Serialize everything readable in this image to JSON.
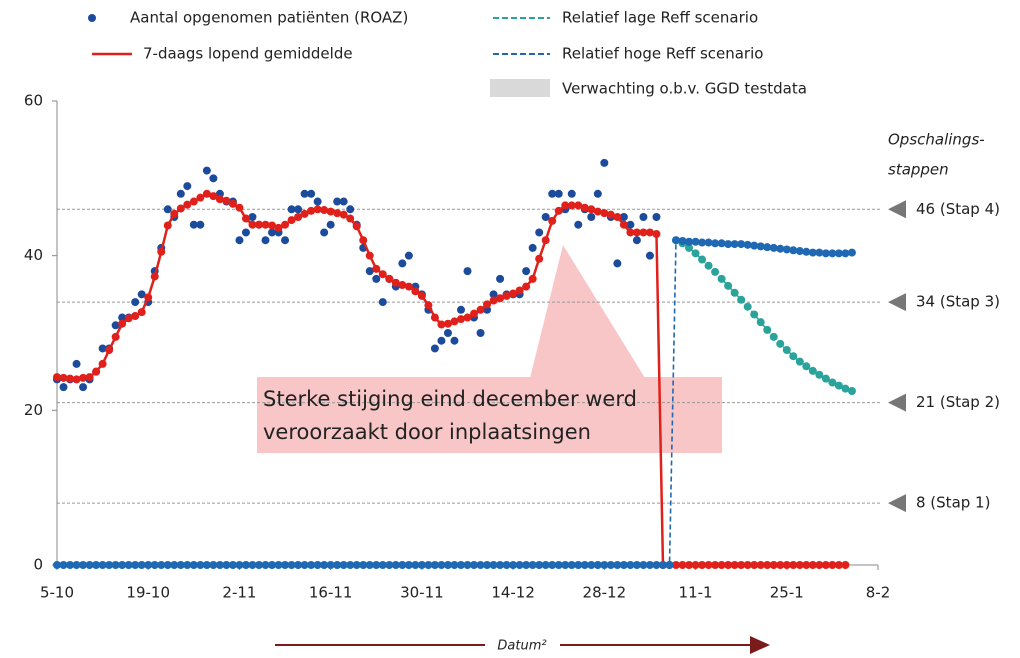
{
  "chart_data": {
    "type": "line",
    "x_label": "Datum²",
    "xlim": [
      0,
      126
    ],
    "xticks": [
      {
        "value": 0,
        "label": "5-10"
      },
      {
        "value": 14,
        "label": "19-10"
      },
      {
        "value": 28,
        "label": "2-11"
      },
      {
        "value": 42,
        "label": "16-11"
      },
      {
        "value": 56,
        "label": "30-11"
      },
      {
        "value": 70,
        "label": "14-12"
      },
      {
        "value": 84,
        "label": "28-12"
      },
      {
        "value": 98,
        "label": "11-1"
      },
      {
        "value": 112,
        "label": "25-1"
      },
      {
        "value": 126,
        "label": "8-2"
      }
    ],
    "ylim": [
      0,
      60
    ],
    "yticks": [
      0,
      20,
      40,
      60
    ],
    "x": [
      0,
      1,
      2,
      3,
      4,
      5,
      6,
      7,
      8,
      9,
      10,
      11,
      12,
      13,
      14,
      15,
      16,
      17,
      18,
      19,
      20,
      21,
      22,
      23,
      24,
      25,
      26,
      27,
      28,
      29,
      30,
      31,
      32,
      33,
      34,
      35,
      36,
      37,
      38,
      39,
      40,
      41,
      42,
      43,
      44,
      45,
      46,
      47,
      48,
      49,
      50,
      51,
      52,
      53,
      54,
      55,
      56,
      57,
      58,
      59,
      60,
      61,
      62,
      63,
      64,
      65,
      66,
      67,
      68,
      69,
      70,
      71,
      72,
      73,
      74,
      75,
      76,
      77,
      78,
      79,
      80,
      81,
      82,
      83,
      84,
      85,
      86,
      87,
      88,
      89,
      90,
      91,
      92,
      93,
      94,
      95,
      96,
      97,
      98,
      99,
      100,
      101,
      102,
      103,
      104,
      105,
      106,
      107,
      108,
      109,
      110,
      111,
      112,
      113,
      114,
      115,
      116,
      117,
      118,
      119,
      120,
      121,
      122
    ],
    "series": [
      {
        "name": "Aantal opgenomen patiënten (ROAZ)",
        "style": "markers",
        "color": "#1c4b9c",
        "values": [
          24,
          23,
          24,
          26,
          23,
          24,
          25,
          28,
          28,
          31,
          32,
          32,
          34,
          35,
          34,
          38,
          41,
          46,
          45,
          48,
          49,
          44,
          44,
          51,
          50,
          48,
          47,
          47,
          42,
          43,
          45,
          44,
          42,
          43,
          43,
          42,
          46,
          46,
          48,
          48,
          47,
          43,
          44,
          47,
          47,
          46,
          44,
          41,
          38,
          37,
          34,
          37,
          36,
          39,
          40,
          36,
          35,
          33,
          28,
          29,
          30,
          29,
          33,
          38,
          32,
          30,
          33,
          35,
          37,
          35,
          35,
          35,
          38,
          41,
          43,
          45,
          48,
          48,
          46,
          48,
          44,
          46,
          45,
          48,
          52,
          45,
          39,
          45,
          44,
          42,
          45,
          40,
          45,
          null,
          null,
          null,
          null,
          null,
          null,
          null,
          null,
          null,
          null,
          null,
          null,
          null,
          null,
          null,
          null,
          null,
          null,
          null,
          null,
          null,
          null,
          null,
          null,
          null,
          null,
          null,
          null,
          null,
          null
        ]
      },
      {
        "name": "7-daags lopend gemiddelde",
        "style": "line",
        "color": "#e0201b",
        "values": [
          24.3,
          24.2,
          24.1,
          24,
          24.2,
          24.3,
          25,
          26,
          27.8,
          29.5,
          31.2,
          31.9,
          32.2,
          32.7,
          34.6,
          37.3,
          40.5,
          43.9,
          45.4,
          46.1,
          46.6,
          47,
          47.5,
          48,
          47.7,
          47.3,
          47.1,
          46.7,
          46.2,
          44.8,
          44,
          44,
          44,
          43.9,
          43.6,
          44,
          44.6,
          45,
          45.4,
          45.8,
          46,
          45.9,
          45.7,
          45.5,
          45.3,
          44.8,
          43.8,
          42,
          40,
          38.3,
          37.6,
          37,
          36.5,
          36.2,
          36,
          35.4,
          34.8,
          33.6,
          32,
          31.1,
          31.2,
          31.5,
          31.8,
          32,
          32.5,
          33,
          33.7,
          34.2,
          34.5,
          34.8,
          35.1,
          35.5,
          36,
          37,
          39.6,
          42,
          44.5,
          45.8,
          46.5,
          46.5,
          46.5,
          46.2,
          46,
          45.7,
          45.5,
          45.3,
          45,
          44,
          43,
          43,
          43,
          43,
          42.8,
          0,
          0,
          0,
          0,
          0,
          0,
          0,
          0,
          0,
          0,
          0,
          0,
          0,
          0,
          0,
          0,
          0,
          0,
          0,
          0,
          0,
          0,
          0,
          0,
          0,
          0,
          0,
          0,
          0,
          null
        ]
      },
      {
        "name": "Relatief lage Reff scenario",
        "style": "dashed",
        "color": "#2aa39b",
        "values": [
          null,
          null,
          null,
          null,
          null,
          null,
          null,
          null,
          null,
          null,
          null,
          null,
          null,
          null,
          null,
          null,
          null,
          null,
          null,
          null,
          null,
          null,
          null,
          null,
          null,
          null,
          null,
          null,
          null,
          null,
          null,
          null,
          null,
          null,
          null,
          null,
          null,
          null,
          null,
          null,
          null,
          null,
          null,
          null,
          null,
          null,
          null,
          null,
          null,
          null,
          null,
          null,
          null,
          null,
          null,
          null,
          null,
          null,
          null,
          null,
          null,
          null,
          null,
          null,
          null,
          null,
          null,
          null,
          null,
          null,
          null,
          null,
          null,
          null,
          null,
          null,
          null,
          null,
          null,
          null,
          null,
          null,
          null,
          null,
          null,
          null,
          null,
          null,
          null,
          null,
          null,
          null,
          null,
          null,
          null,
          42,
          41.6,
          41,
          40.3,
          39.5,
          38.7,
          37.9,
          37,
          36.1,
          35.2,
          34.3,
          33.4,
          32.4,
          31.4,
          30.4,
          29.5,
          28.6,
          27.8,
          27,
          26.3,
          25.7,
          25.1,
          24.6,
          24.1,
          23.6,
          23.2,
          22.8,
          22.5
        ]
      },
      {
        "name": "Relatief hoge Reff scenario",
        "style": "dashed",
        "color": "#1e68b4",
        "values": [
          0,
          0,
          0,
          0,
          0,
          0,
          0,
          0,
          0,
          0,
          0,
          0,
          0,
          0,
          0,
          0,
          0,
          0,
          0,
          0,
          0,
          0,
          0,
          0,
          0,
          0,
          0,
          0,
          0,
          0,
          0,
          0,
          0,
          0,
          0,
          0,
          0,
          0,
          0,
          0,
          0,
          0,
          0,
          0,
          0,
          0,
          0,
          0,
          0,
          0,
          0,
          0,
          0,
          0,
          0,
          0,
          0,
          0,
          0,
          0,
          0,
          0,
          0,
          0,
          0,
          0,
          0,
          0,
          0,
          0,
          0,
          0,
          0,
          0,
          0,
          0,
          0,
          0,
          0,
          0,
          0,
          0,
          0,
          0,
          0,
          0,
          0,
          0,
          0,
          0,
          0,
          0,
          0,
          0,
          0,
          42,
          41.9,
          41.8,
          41.8,
          41.7,
          41.7,
          41.6,
          41.6,
          41.5,
          41.5,
          41.5,
          41.4,
          41.3,
          41.2,
          41.1,
          41,
          40.9,
          40.8,
          40.7,
          40.6,
          40.5,
          40.4,
          40.4,
          40.3,
          40.3,
          40.3,
          40.3,
          40.4
        ]
      }
    ],
    "legend_patch": {
      "name": "Verwachting o.b.v. GGD testdata",
      "color": "#d9d9d9"
    },
    "thresholds_title": [
      "Opschalings-",
      "stappen"
    ],
    "thresholds": [
      {
        "value": 46,
        "label": "46 (Stap 4)"
      },
      {
        "value": 34,
        "label": "34 (Stap 3)"
      },
      {
        "value": 21,
        "label": "21 (Stap 2)"
      },
      {
        "value": 8,
        "label": "8 (Stap 1)"
      }
    ],
    "annotation": [
      "Sterke stijging eind december werd",
      "veroorzaakt door inplaatsingen"
    ]
  }
}
